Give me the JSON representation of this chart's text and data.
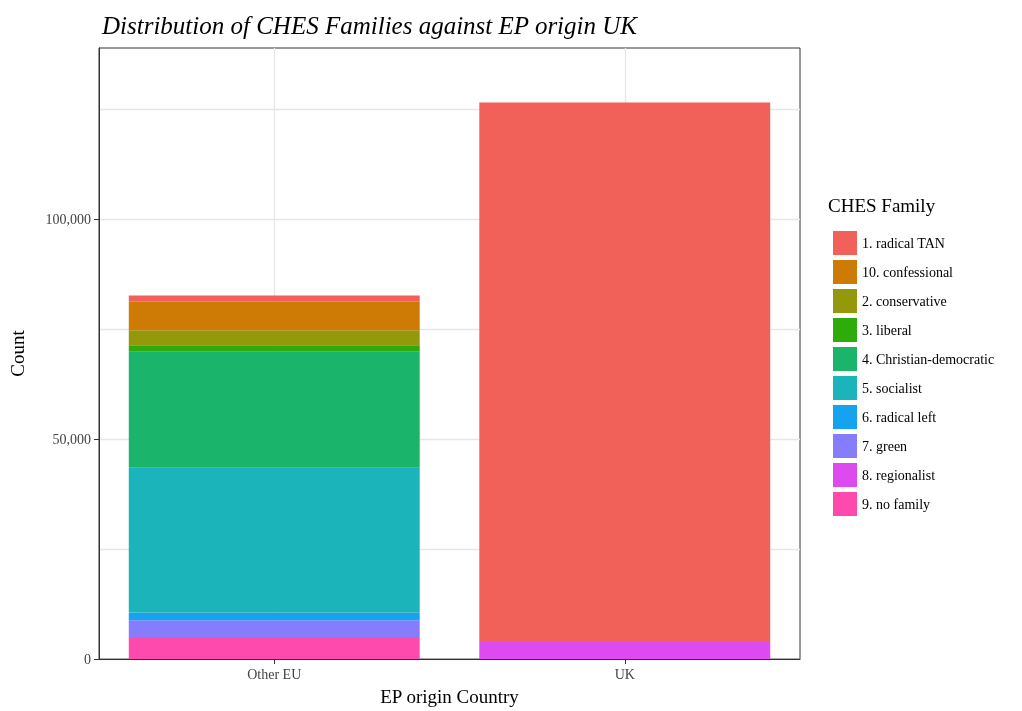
{
  "chart_data": {
    "type": "bar",
    "title": "Distribution of CHES Families against EP origin UK",
    "xlabel": "EP origin Country",
    "ylabel": "Count",
    "legend_title": "CHES Family",
    "categories": [
      "Other EU",
      "UK"
    ],
    "stacked": true,
    "series": [
      {
        "name": "9. no family",
        "color": "#fd4aac",
        "values": [
          4800,
          0
        ]
      },
      {
        "name": "8. regionalist",
        "color": "#dd4bf0",
        "values": [
          0,
          4100
        ]
      },
      {
        "name": "7. green",
        "color": "#857cfe",
        "values": [
          4000,
          0
        ]
      },
      {
        "name": "6. radical left",
        "color": "#15a2ee",
        "values": [
          1800,
          0
        ]
      },
      {
        "name": "5. socialist",
        "color": "#1ab4ba",
        "values": [
          32900,
          0
        ]
      },
      {
        "name": "4. Christian-democratic",
        "color": "#1ab46a",
        "values": [
          26400,
          0
        ]
      },
      {
        "name": "3. liberal",
        "color": "#2fab0b",
        "values": [
          1500,
          0
        ]
      },
      {
        "name": "2. conservative",
        "color": "#93990a",
        "values": [
          3400,
          0
        ]
      },
      {
        "name": "10. confessional",
        "color": "#ce7b06",
        "values": [
          6500,
          0
        ]
      },
      {
        "name": "1. radical TAN",
        "color": "#f2605a",
        "values": [
          1400,
          122500
        ]
      }
    ],
    "ylim": [
      0,
      139000
    ],
    "yticks": [
      0,
      {
        "value": 25000,
        "label": null
      },
      {
        "value": 50000,
        "label": "50,000"
      },
      {
        "value": 75000,
        "label": null
      },
      {
        "value": 100000,
        "label": "100,000"
      },
      {
        "value": 125000,
        "label": null
      }
    ],
    "grid": true,
    "legend": "right"
  }
}
